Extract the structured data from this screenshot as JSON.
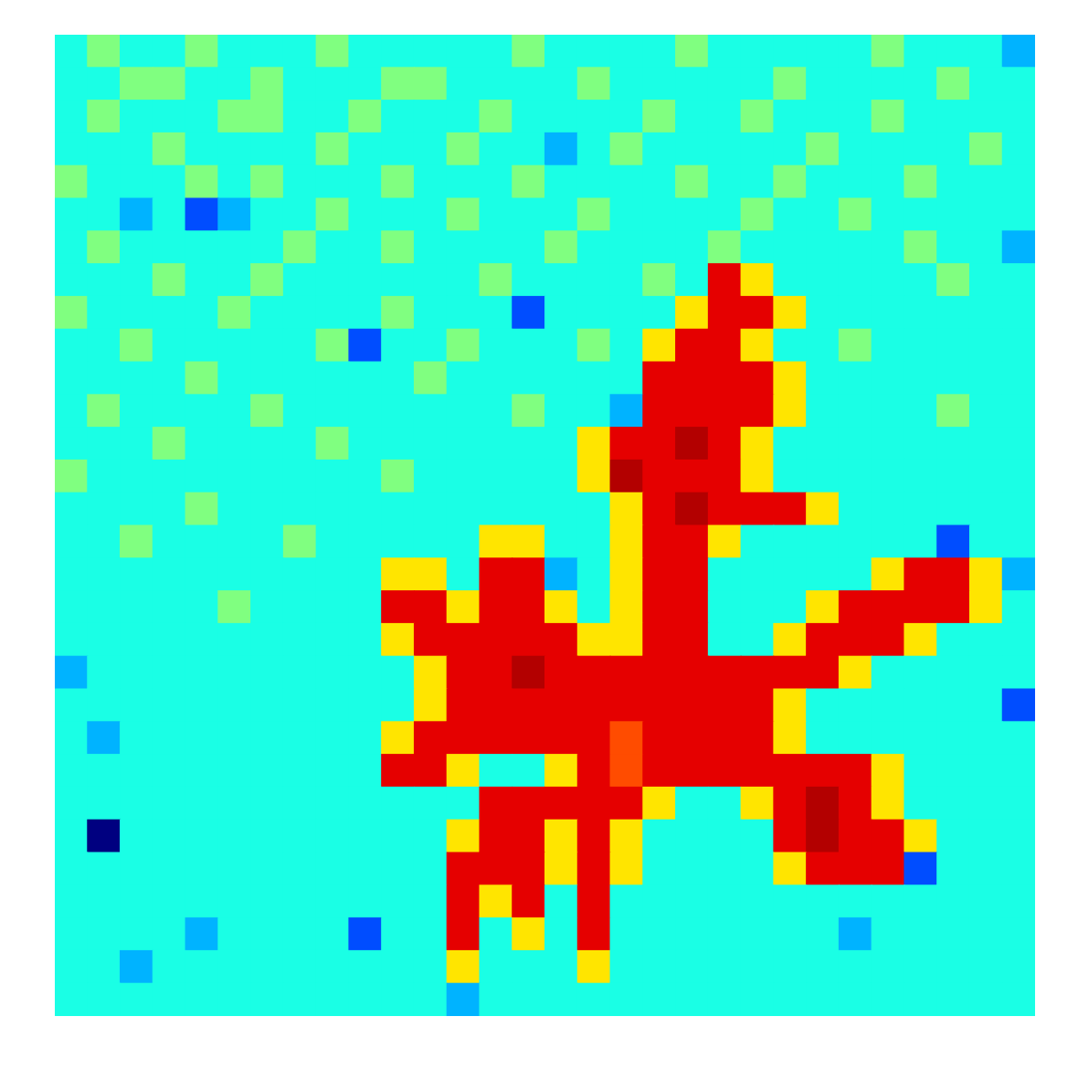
{
  "chart_data": {
    "type": "heatmap",
    "tick_labels": false,
    "zlim": [
      0,
      10
    ],
    "cells": [
      [
        4,
        5,
        4,
        4,
        5,
        4,
        4,
        4,
        5,
        4,
        4,
        4,
        4,
        4,
        5,
        4,
        4,
        4,
        4,
        5,
        4,
        4,
        4,
        4,
        4,
        5,
        4,
        4,
        4,
        3
      ],
      [
        4,
        4,
        5,
        5,
        4,
        4,
        5,
        4,
        4,
        4,
        5,
        5,
        4,
        4,
        4,
        4,
        5,
        4,
        4,
        4,
        4,
        4,
        5,
        4,
        4,
        4,
        4,
        5,
        4,
        4
      ],
      [
        4,
        5,
        4,
        4,
        4,
        5,
        5,
        4,
        4,
        5,
        4,
        4,
        4,
        5,
        4,
        4,
        4,
        4,
        5,
        4,
        4,
        5,
        4,
        4,
        4,
        5,
        4,
        4,
        4,
        4
      ],
      [
        4,
        4,
        4,
        5,
        4,
        4,
        4,
        4,
        5,
        4,
        4,
        4,
        5,
        4,
        4,
        3,
        4,
        5,
        4,
        4,
        4,
        4,
        4,
        5,
        4,
        4,
        4,
        4,
        5,
        4
      ],
      [
        5,
        4,
        4,
        4,
        5,
        4,
        5,
        4,
        4,
        4,
        5,
        4,
        4,
        4,
        5,
        4,
        4,
        4,
        4,
        5,
        4,
        4,
        5,
        4,
        4,
        4,
        5,
        4,
        4,
        4
      ],
      [
        4,
        4,
        3,
        4,
        2,
        3,
        4,
        4,
        5,
        4,
        4,
        4,
        5,
        4,
        4,
        4,
        5,
        4,
        4,
        4,
        4,
        5,
        4,
        4,
        5,
        4,
        4,
        4,
        4,
        4
      ],
      [
        4,
        5,
        4,
        4,
        4,
        4,
        4,
        5,
        4,
        4,
        5,
        4,
        4,
        4,
        4,
        5,
        4,
        4,
        4,
        4,
        5,
        4,
        4,
        4,
        4,
        4,
        5,
        4,
        4,
        3
      ],
      [
        4,
        4,
        4,
        5,
        4,
        4,
        5,
        4,
        4,
        4,
        4,
        4,
        4,
        5,
        4,
        4,
        4,
        4,
        5,
        4,
        9,
        6.5,
        4,
        4,
        4,
        4,
        4,
        5,
        4,
        4
      ],
      [
        5,
        4,
        4,
        4,
        4,
        5,
        4,
        4,
        4,
        4,
        5,
        4,
        4,
        4,
        2,
        4,
        4,
        4,
        4,
        6.5,
        9,
        9,
        6.5,
        4,
        4,
        4,
        4,
        4,
        4,
        4
      ],
      [
        4,
        4,
        5,
        4,
        4,
        4,
        4,
        4,
        5,
        2,
        4,
        4,
        5,
        4,
        4,
        4,
        5,
        4,
        6.5,
        9,
        9,
        6.5,
        4,
        4,
        5,
        4,
        4,
        4,
        4,
        4
      ],
      [
        4,
        4,
        4,
        4,
        5,
        4,
        4,
        4,
        4,
        4,
        4,
        5,
        4,
        4,
        4,
        4,
        4,
        4,
        9,
        9,
        9,
        9,
        6.5,
        4,
        4,
        4,
        4,
        4,
        4,
        4
      ],
      [
        4,
        5,
        4,
        4,
        4,
        4,
        5,
        4,
        4,
        4,
        4,
        4,
        4,
        4,
        5,
        4,
        4,
        3,
        9,
        9,
        9,
        9,
        6.5,
        4,
        4,
        4,
        4,
        5,
        4,
        4
      ],
      [
        4,
        4,
        4,
        5,
        4,
        4,
        4,
        4,
        5,
        4,
        4,
        4,
        4,
        4,
        4,
        4,
        6.5,
        9,
        9,
        9.5,
        9,
        6.5,
        4,
        4,
        4,
        4,
        4,
        4,
        4,
        4
      ],
      [
        5,
        4,
        4,
        4,
        4,
        4,
        4,
        4,
        4,
        4,
        5,
        4,
        4,
        4,
        4,
        4,
        6.5,
        9.5,
        9,
        9,
        9,
        6.5,
        4,
        4,
        4,
        4,
        4,
        4,
        4,
        4
      ],
      [
        4,
        4,
        4,
        4,
        5,
        4,
        4,
        4,
        4,
        4,
        4,
        4,
        4,
        4,
        4,
        4,
        4,
        6.5,
        9,
        9.5,
        9,
        9,
        9,
        6.5,
        4,
        4,
        4,
        4,
        4,
        4
      ],
      [
        4,
        4,
        5,
        4,
        4,
        4,
        4,
        5,
        4,
        4,
        4,
        4,
        4,
        6.5,
        6.5,
        4,
        4,
        6.5,
        9,
        9,
        6.5,
        4,
        4,
        4,
        4,
        4,
        4,
        2,
        4,
        4
      ],
      [
        4,
        4,
        4,
        4,
        4,
        4,
        4,
        4,
        4,
        4,
        6.5,
        6.5,
        4,
        9,
        9,
        3,
        4,
        6.5,
        9,
        9,
        4,
        4,
        4,
        4,
        4,
        6.5,
        9,
        9,
        6.5,
        3
      ],
      [
        4,
        4,
        4,
        4,
        4,
        5,
        4,
        4,
        4,
        4,
        9,
        9,
        6.5,
        9,
        9,
        6.5,
        4,
        6.5,
        9,
        9,
        4,
        4,
        4,
        6.5,
        9,
        9,
        9,
        9,
        6.5,
        4
      ],
      [
        4,
        4,
        4,
        4,
        4,
        4,
        4,
        4,
        4,
        4,
        6.5,
        9,
        9,
        9,
        9,
        9,
        6.5,
        6.5,
        9,
        9,
        4,
        4,
        6.5,
        9,
        9,
        9,
        6.5,
        4,
        4,
        4
      ],
      [
        3,
        4,
        4,
        4,
        4,
        4,
        4,
        4,
        4,
        4,
        4,
        6.5,
        9,
        9,
        9.5,
        9,
        9,
        9,
        9,
        9,
        9,
        9,
        9,
        9,
        6.5,
        4,
        4,
        4,
        4,
        4
      ],
      [
        4,
        4,
        4,
        4,
        4,
        4,
        4,
        4,
        4,
        4,
        4,
        6.5,
        9,
        9,
        9,
        9,
        9,
        9,
        9,
        9,
        9,
        9,
        6.5,
        4,
        4,
        4,
        4,
        4,
        4,
        2
      ],
      [
        4,
        3,
        4,
        4,
        4,
        4,
        4,
        4,
        4,
        4,
        6.5,
        9,
        9,
        9,
        9,
        9,
        9,
        8,
        9,
        9,
        9,
        9,
        6.5,
        4,
        4,
        4,
        4,
        4,
        4,
        4
      ],
      [
        4,
        4,
        4,
        4,
        4,
        4,
        4,
        4,
        4,
        4,
        9,
        9,
        6.5,
        4,
        4,
        6.5,
        9,
        8,
        9,
        9,
        9,
        9,
        9,
        9,
        9,
        6.5,
        4,
        4,
        4,
        4
      ],
      [
        4,
        4,
        4,
        4,
        4,
        4,
        4,
        4,
        4,
        4,
        4,
        4,
        4,
        9,
        9,
        9,
        9,
        9,
        6.5,
        4,
        4,
        6.5,
        9,
        9.5,
        9,
        6.5,
        4,
        4,
        4,
        4
      ],
      [
        4,
        0,
        4,
        4,
        4,
        4,
        4,
        4,
        4,
        4,
        4,
        4,
        6.5,
        9,
        9,
        6.5,
        9,
        6.5,
        4,
        4,
        4,
        4,
        9,
        9.5,
        9,
        9,
        6.5,
        4,
        4,
        4
      ],
      [
        4,
        4,
        4,
        4,
        4,
        4,
        4,
        4,
        4,
        4,
        4,
        4,
        9,
        9,
        9,
        6.5,
        9,
        6.5,
        4,
        4,
        4,
        4,
        6.5,
        9,
        9,
        9,
        2,
        4,
        4,
        4
      ],
      [
        4,
        4,
        4,
        4,
        4,
        4,
        4,
        4,
        4,
        4,
        4,
        4,
        9,
        6.5,
        9,
        4,
        9,
        4,
        4,
        4,
        4,
        4,
        4,
        4,
        4,
        4,
        4,
        4,
        4,
        4
      ],
      [
        4,
        4,
        4,
        4,
        3,
        4,
        4,
        4,
        4,
        2,
        4,
        4,
        9,
        4,
        6.5,
        4,
        9,
        4,
        4,
        4,
        4,
        4,
        4,
        4,
        3,
        4,
        4,
        4,
        4,
        4
      ],
      [
        4,
        4,
        3,
        4,
        4,
        4,
        4,
        4,
        4,
        4,
        4,
        4,
        6.5,
        4,
        4,
        4,
        6.5,
        4,
        4,
        4,
        4,
        4,
        4,
        4,
        4,
        4,
        4,
        4,
        4,
        4
      ],
      [
        4,
        4,
        4,
        4,
        4,
        4,
        4,
        4,
        4,
        4,
        4,
        4,
        3,
        4,
        4,
        4,
        4,
        4,
        4,
        4,
        4,
        4,
        4,
        4,
        4,
        4,
        4,
        4,
        4,
        4
      ]
    ]
  }
}
